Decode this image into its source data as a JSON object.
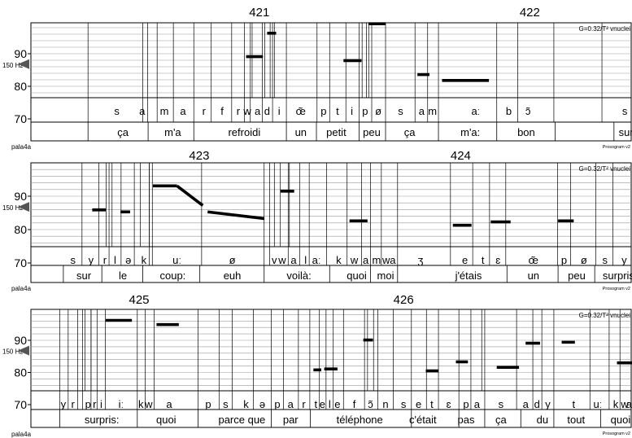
{
  "chart_data": {
    "type": "prosogram",
    "strips": [
      {
        "segment_numbers": [
          {
            "label": "421",
            "time": 0.38
          },
          {
            "label": "422",
            "time": 0.83
          }
        ],
        "y_ticks": [
          {
            "value": 70,
            "label": "70"
          },
          {
            "value": 80,
            "label": "80"
          },
          {
            "value": 90,
            "label": "90"
          }
        ],
        "ref_label": "150 Hz",
        "ref_value": 86.8,
        "info_label": "G=0.32/T² vnuclei",
        "file_label": "pala4a",
        "version_label": "Prosogram v2",
        "phones": [
          {
            "t": 0.143,
            "label": "s"
          },
          {
            "t": 0.185,
            "label": "a"
          },
          {
            "t": 0.222,
            "label": "m"
          },
          {
            "t": 0.253,
            "label": "a"
          },
          {
            "t": 0.288,
            "label": "r"
          },
          {
            "t": 0.318,
            "label": "f"
          },
          {
            "t": 0.345,
            "label": "r"
          },
          {
            "t": 0.36,
            "label": "w"
          },
          {
            "t": 0.377,
            "label": "a"
          },
          {
            "t": 0.393,
            "label": "d"
          },
          {
            "t": 0.413,
            "label": "i"
          },
          {
            "t": 0.449,
            "label": "œ̃"
          },
          {
            "t": 0.487,
            "label": "p"
          },
          {
            "t": 0.51,
            "label": "t"
          },
          {
            "t": 0.534,
            "label": "i"
          },
          {
            "t": 0.556,
            "label": "p"
          },
          {
            "t": 0.578,
            "label": "ø"
          },
          {
            "t": 0.615,
            "label": "s"
          },
          {
            "t": 0.65,
            "label": "a"
          },
          {
            "t": 0.668,
            "label": "m"
          },
          {
            "t": 0.74,
            "label": "aː"
          },
          {
            "t": 0.795,
            "label": "b"
          },
          {
            "t": 0.827,
            "label": "ɔ̃"
          },
          {
            "t": 0.988,
            "label": "s"
          }
        ],
        "words": [
          {
            "t": 0.153,
            "label": "ça"
          },
          {
            "t": 0.236,
            "label": "m'a"
          },
          {
            "t": 0.355,
            "label": "refroidi"
          },
          {
            "t": 0.449,
            "label": "un"
          },
          {
            "t": 0.508,
            "label": "petit"
          },
          {
            "t": 0.567,
            "label": "peu"
          },
          {
            "t": 0.63,
            "label": "ça"
          },
          {
            "t": 0.731,
            "label": "m'a:"
          },
          {
            "t": 0.824,
            "label": "bon"
          },
          {
            "t": 0.99,
            "label": "sur"
          }
        ],
        "phone_boundaries": [
          0.095,
          0.186,
          0.194,
          0.21,
          0.237,
          0.271,
          0.3,
          0.334,
          0.355,
          0.365,
          0.385,
          0.402,
          0.425,
          0.476,
          0.497,
          0.524,
          0.546,
          0.567,
          0.59,
          0.639,
          0.66,
          0.678,
          0.775,
          0.81,
          0.87,
          0.95
        ],
        "word_boundaries": [
          0.095,
          0.195,
          0.271,
          0.425,
          0.475,
          0.546,
          0.59,
          0.678,
          0.775,
          0.872,
          0.97
        ],
        "pitch_extra_lines": [
          0.368,
          0.389,
          0.398,
          0.405,
          0.551,
          0.558,
          0.562
        ],
        "stylizations": [
          {
            "t_start": 0.358,
            "t_end": 0.386,
            "st_start": 89.1,
            "st_end": 89.1
          },
          {
            "t_start": 0.393,
            "t_end": 0.408,
            "st_start": 96.3,
            "st_end": 96.3
          },
          {
            "t_start": 0.52,
            "t_end": 0.55,
            "st_start": 87.9,
            "st_end": 87.9
          },
          {
            "t_start": 0.562,
            "t_end": 0.59,
            "st_start": 99.2,
            "st_end": 99.2
          },
          {
            "t_start": 0.643,
            "t_end": 0.663,
            "st_start": 83.6,
            "st_end": 83.6
          },
          {
            "t_start": 0.684,
            "t_end": 0.762,
            "st_start": 81.8,
            "st_end": 81.8
          }
        ]
      },
      {
        "segment_numbers": [
          {
            "label": "423",
            "time": 0.28
          },
          {
            "label": "424",
            "time": 0.715
          }
        ],
        "y_ticks": [
          {
            "value": 70,
            "label": "70"
          },
          {
            "value": 80,
            "label": "80"
          },
          {
            "value": 90,
            "label": "90"
          }
        ],
        "ref_label": "150 Hz",
        "ref_value": 86.8,
        "info_label": "G=0.32/T² vnuclei",
        "file_label": "pala4a",
        "version_label": "Prosogram v2",
        "phones": [
          {
            "t": 0.07,
            "label": "s"
          },
          {
            "t": 0.1,
            "label": "y"
          },
          {
            "t": 0.123,
            "label": "r"
          },
          {
            "t": 0.14,
            "label": "l"
          },
          {
            "t": 0.162,
            "label": "ə"
          },
          {
            "t": 0.188,
            "label": "k"
          },
          {
            "t": 0.243,
            "label": "uː"
          },
          {
            "t": 0.335,
            "label": "ø"
          },
          {
            "t": 0.405,
            "label": "v"
          },
          {
            "t": 0.418,
            "label": "w"
          },
          {
            "t": 0.437,
            "label": "a"
          },
          {
            "t": 0.457,
            "label": "l"
          },
          {
            "t": 0.475,
            "label": "aː"
          },
          {
            "t": 0.512,
            "label": "k"
          },
          {
            "t": 0.538,
            "label": "w"
          },
          {
            "t": 0.557,
            "label": "a"
          },
          {
            "t": 0.575,
            "label": "m"
          },
          {
            "t": 0.591,
            "label": "w"
          },
          {
            "t": 0.602,
            "label": "a"
          },
          {
            "t": 0.648,
            "label": "ʒ"
          },
          {
            "t": 0.722,
            "label": "e"
          },
          {
            "t": 0.752,
            "label": "t"
          },
          {
            "t": 0.777,
            "label": "ɛ"
          },
          {
            "t": 0.836,
            "label": "œ̃"
          },
          {
            "t": 0.887,
            "label": "p"
          },
          {
            "t": 0.92,
            "label": "ø"
          },
          {
            "t": 0.955,
            "label": "s"
          },
          {
            "t": 0.987,
            "label": "y"
          }
        ],
        "words": [
          {
            "t": 0.088,
            "label": "sur"
          },
          {
            "t": 0.153,
            "label": "le"
          },
          {
            "t": 0.236,
            "label": "coup:"
          },
          {
            "t": 0.335,
            "label": "euh"
          },
          {
            "t": 0.446,
            "label": "voilà:"
          },
          {
            "t": 0.542,
            "label": "quoi"
          },
          {
            "t": 0.59,
            "label": "moi"
          },
          {
            "t": 0.728,
            "label": "j'étais"
          },
          {
            "t": 0.836,
            "label": "un"
          },
          {
            "t": 0.908,
            "label": "peu"
          },
          {
            "t": 0.98,
            "label": "surpris:"
          }
        ],
        "phone_boundaries": [
          0.085,
          0.113,
          0.13,
          0.15,
          0.172,
          0.197,
          0.202,
          0.284,
          0.388,
          0.397,
          0.428,
          0.447,
          0.463,
          0.492,
          0.526,
          0.55,
          0.565,
          0.583,
          0.61,
          0.698,
          0.735,
          0.763,
          0.79,
          0.876,
          0.898,
          0.94,
          0.968
        ],
        "word_boundaries": [
          0.054,
          0.118,
          0.186,
          0.281,
          0.388,
          0.497,
          0.565,
          0.61,
          0.792,
          0.877,
          0.938
        ],
        "pitch_extra_lines": [
          0.125,
          0.135,
          0.182,
          0.197,
          0.405,
          0.415,
          0.43
        ],
        "stylizations": [
          {
            "t_start": 0.102,
            "t_end": 0.125,
            "st_start": 85.9,
            "st_end": 85.9
          },
          {
            "t_start": 0.149,
            "t_end": 0.165,
            "st_start": 85.3,
            "st_end": 85.3
          },
          {
            "t_start": 0.203,
            "t_end": 0.243,
            "st_start": 93.1,
            "st_end": 93.1
          },
          {
            "t_start": 0.243,
            "t_end": 0.286,
            "st_start": 93.1,
            "st_end": 87.2
          },
          {
            "t_start": 0.294,
            "t_end": 0.388,
            "st_start": 85.3,
            "st_end": 83.3
          },
          {
            "t_start": 0.415,
            "t_end": 0.438,
            "st_start": 91.5,
            "st_end": 91.5
          },
          {
            "t_start": 0.53,
            "t_end": 0.56,
            "st_start": 82.6,
            "st_end": 82.6
          },
          {
            "t_start": 0.702,
            "t_end": 0.733,
            "st_start": 81.3,
            "st_end": 81.3
          },
          {
            "t_start": 0.765,
            "t_end": 0.798,
            "st_start": 82.3,
            "st_end": 82.3
          },
          {
            "t_start": 0.877,
            "t_end": 0.903,
            "st_start": 82.6,
            "st_end": 82.6
          }
        ]
      },
      {
        "segment_numbers": [
          {
            "label": "425",
            "time": 0.18
          },
          {
            "label": "426",
            "time": 0.62
          }
        ],
        "y_ticks": [
          {
            "value": 70,
            "label": "70"
          },
          {
            "value": 80,
            "label": "80"
          },
          {
            "value": 90,
            "label": "90"
          }
        ],
        "ref_label": "150 Hz",
        "ref_value": 86.8,
        "info_label": "G=0.32/T² vnuclei",
        "file_label": "pala4a",
        "version_label": "Prosogram v2",
        "phones": [
          {
            "t": 0.054,
            "label": "y"
          },
          {
            "t": 0.07,
            "label": "r"
          },
          {
            "t": 0.095,
            "label": "p"
          },
          {
            "t": 0.106,
            "label": "r"
          },
          {
            "t": 0.117,
            "label": "i"
          },
          {
            "t": 0.15,
            "label": "iː"
          },
          {
            "t": 0.183,
            "label": "k"
          },
          {
            "t": 0.196,
            "label": "w"
          },
          {
            "t": 0.23,
            "label": "a"
          },
          {
            "t": 0.295,
            "label": "p"
          },
          {
            "t": 0.324,
            "label": "s"
          },
          {
            "t": 0.358,
            "label": "k"
          },
          {
            "t": 0.385,
            "label": "ə"
          },
          {
            "t": 0.41,
            "label": "p"
          },
          {
            "t": 0.432,
            "label": "a"
          },
          {
            "t": 0.454,
            "label": "r"
          },
          {
            "t": 0.474,
            "label": "t"
          },
          {
            "t": 0.485,
            "label": "e"
          },
          {
            "t": 0.497,
            "label": "l"
          },
          {
            "t": 0.51,
            "label": "e"
          },
          {
            "t": 0.538,
            "label": "f"
          },
          {
            "t": 0.565,
            "label": "ɔ̃"
          },
          {
            "t": 0.59,
            "label": "n"
          },
          {
            "t": 0.62,
            "label": "s"
          },
          {
            "t": 0.645,
            "label": "e"
          },
          {
            "t": 0.667,
            "label": "t"
          },
          {
            "t": 0.695,
            "label": "ɛ"
          },
          {
            "t": 0.724,
            "label": "p"
          },
          {
            "t": 0.742,
            "label": "a"
          },
          {
            "t": 0.782,
            "label": "s"
          },
          {
            "t": 0.823,
            "label": "a"
          },
          {
            "t": 0.842,
            "label": "d"
          },
          {
            "t": 0.86,
            "label": "y"
          },
          {
            "t": 0.903,
            "label": "t"
          },
          {
            "t": 0.943,
            "label": "uː"
          },
          {
            "t": 0.973,
            "label": "k"
          },
          {
            "t": 0.988,
            "label": "w"
          },
          {
            "t": 0.995,
            "label": "a"
          }
        ],
        "words": [
          {
            "t": 0.118,
            "label": "surpris:"
          },
          {
            "t": 0.225,
            "label": "quoi"
          },
          {
            "t": 0.351,
            "label": "parce que"
          },
          {
            "t": 0.432,
            "label": "par"
          },
          {
            "t": 0.547,
            "label": "téléphone"
          },
          {
            "t": 0.652,
            "label": "c'était"
          },
          {
            "t": 0.724,
            "label": "pas"
          },
          {
            "t": 0.782,
            "label": "ça"
          },
          {
            "t": 0.851,
            "label": "du"
          },
          {
            "t": 0.907,
            "label": "tout"
          },
          {
            "t": 0.981,
            "label": "quoi"
          }
        ],
        "phone_boundaries": [
          0.048,
          0.062,
          0.078,
          0.086,
          0.1,
          0.11,
          0.124,
          0.177,
          0.19,
          0.205,
          0.278,
          0.313,
          0.335,
          0.37,
          0.4,
          0.42,
          0.445,
          0.464,
          0.48,
          0.491,
          0.503,
          0.52,
          0.555,
          0.577,
          0.603,
          0.633,
          0.658,
          0.678,
          0.712,
          0.732,
          0.755,
          0.808,
          0.835,
          0.85,
          0.87,
          0.93,
          0.962,
          0.98
        ],
        "word_boundaries": [
          0.048,
          0.177,
          0.278,
          0.4,
          0.465,
          0.633,
          0.712,
          0.755,
          0.815,
          0.87,
          0.948
        ],
        "pitch_extra_lines": [
          0.09,
          0.1,
          0.56,
          0.57,
          0.75
        ],
        "stylizations": [
          {
            "t_start": 0.124,
            "t_end": 0.168,
            "st_start": 96.2,
            "st_end": 96.2
          },
          {
            "t_start": 0.209,
            "t_end": 0.246,
            "st_start": 94.9,
            "st_end": 94.9
          },
          {
            "t_start": 0.47,
            "t_end": 0.483,
            "st_start": 80.8,
            "st_end": 80.8
          },
          {
            "t_start": 0.488,
            "t_end": 0.51,
            "st_start": 81.1,
            "st_end": 81.1
          },
          {
            "t_start": 0.553,
            "t_end": 0.569,
            "st_start": 90.1,
            "st_end": 90.1
          },
          {
            "t_start": 0.657,
            "t_end": 0.678,
            "st_start": 80.5,
            "st_end": 80.5
          },
          {
            "t_start": 0.707,
            "t_end": 0.727,
            "st_start": 83.3,
            "st_end": 83.3
          },
          {
            "t_start": 0.775,
            "t_end": 0.812,
            "st_start": 81.6,
            "st_end": 81.6
          },
          {
            "t_start": 0.823,
            "t_end": 0.847,
            "st_start": 89.1,
            "st_end": 89.1
          },
          {
            "t_start": 0.883,
            "t_end": 0.905,
            "st_start": 89.4,
            "st_end": 89.4
          },
          {
            "t_start": 0.975,
            "t_end": 1.0,
            "st_start": 83.0,
            "st_end": 83.0
          }
        ]
      }
    ]
  }
}
